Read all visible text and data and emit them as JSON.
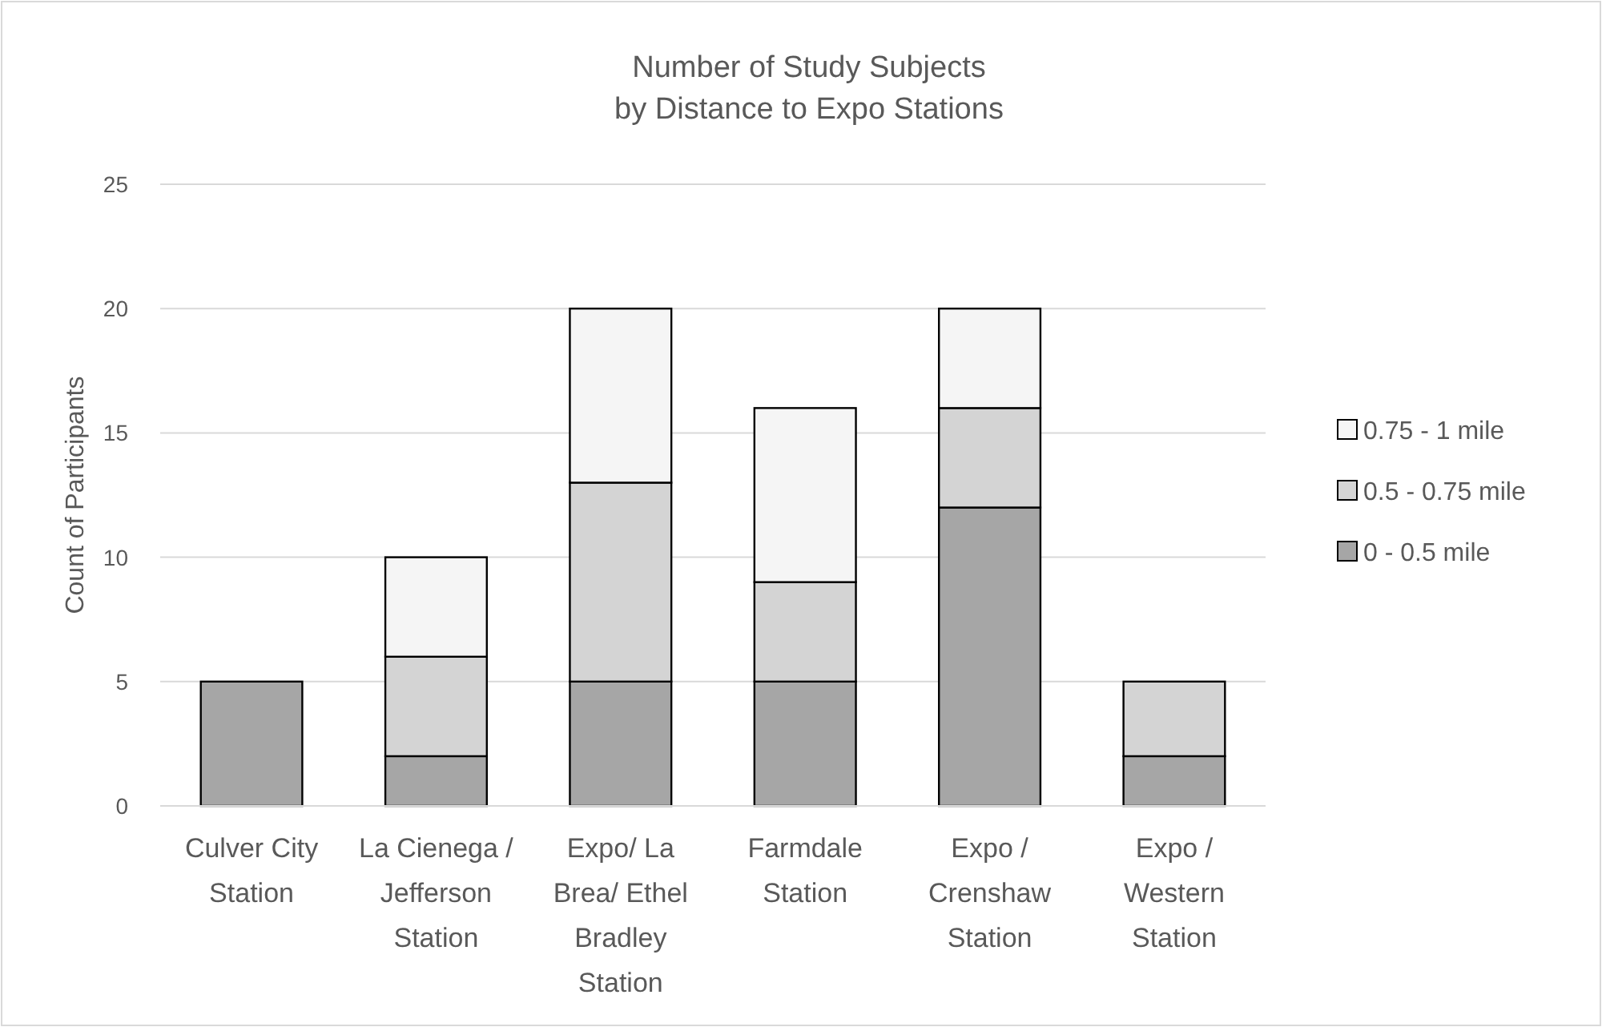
{
  "chart_data": {
    "type": "bar",
    "title": "Number of Study Subjects\nby Distance to Expo Stations",
    "ylabel": "Count of Participants",
    "categories": [
      "Culver City Station",
      "La Cienega / Jefferson Station",
      "Expo/ La Brea/ Ethel Bradley Station",
      "Farmdale Station",
      "Expo / Crenshaw Station",
      "Expo / Western Station"
    ],
    "series": [
      {
        "name": "0 - 0.5 mile",
        "color": "#a6a6a6",
        "values": [
          5,
          2,
          5,
          5,
          12,
          2
        ]
      },
      {
        "name": "0.5 - 0.75 mile",
        "color": "#d4d4d4",
        "values": [
          0,
          4,
          8,
          4,
          4,
          3
        ]
      },
      {
        "name": "0.75 - 1 mile",
        "color": "#f5f5f5",
        "values": [
          0,
          4,
          7,
          7,
          4,
          0
        ]
      }
    ],
    "stacked": true,
    "ylim": [
      0,
      25
    ],
    "yticks": [
      0,
      5,
      10,
      15,
      20,
      25
    ],
    "grid": "y",
    "legend": "right"
  }
}
